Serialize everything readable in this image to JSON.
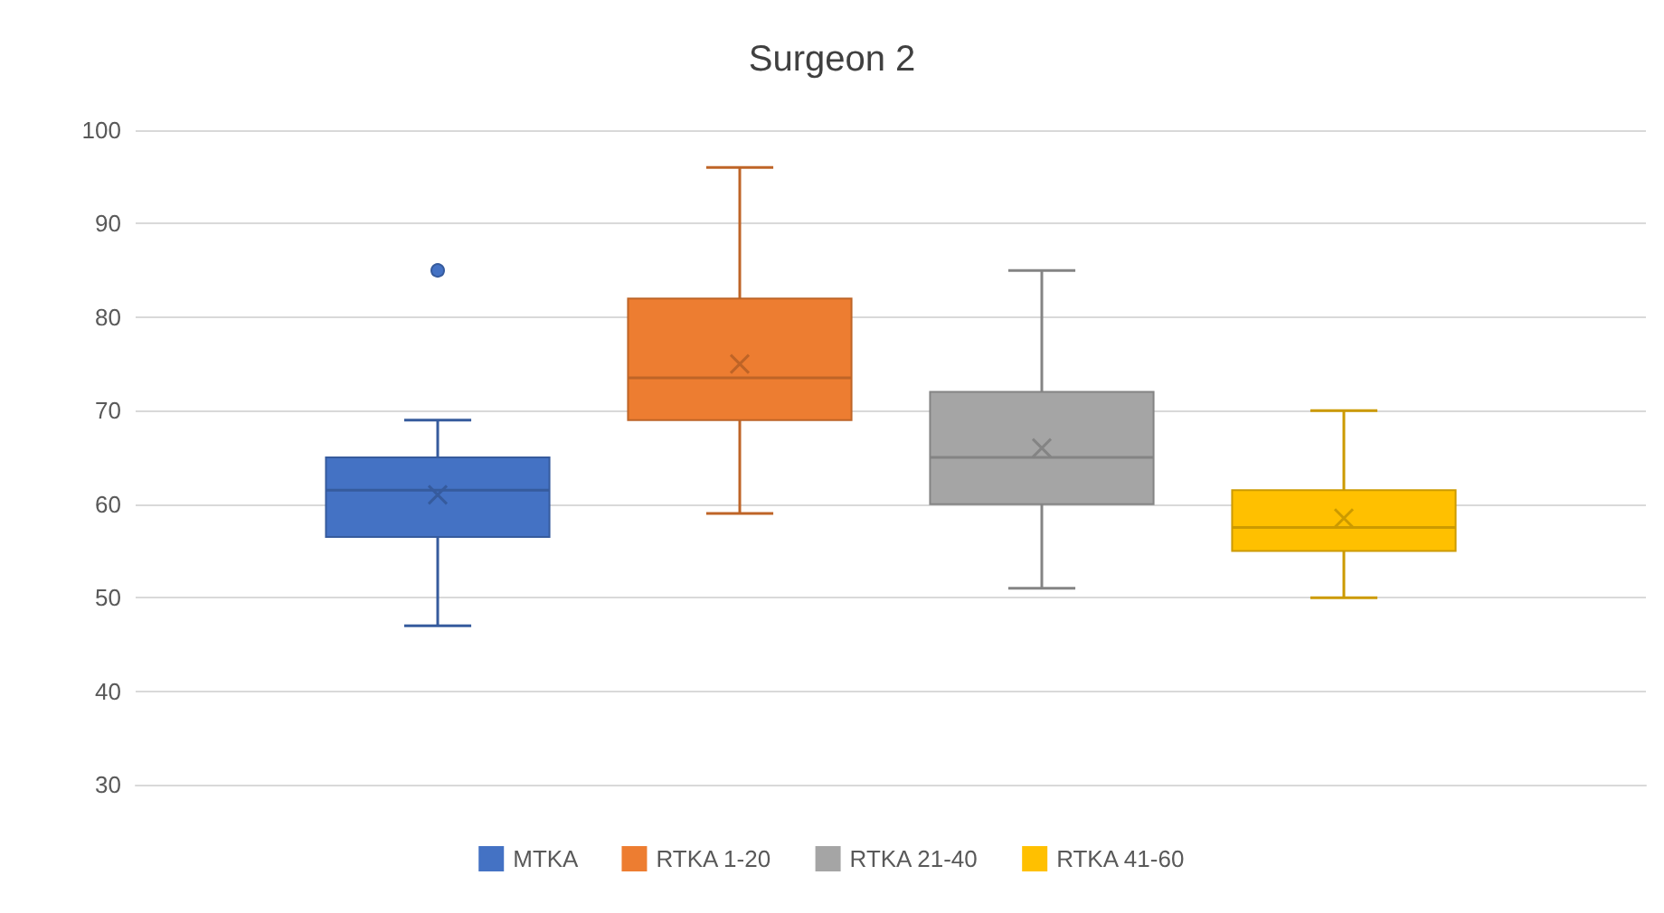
{
  "chart_data": {
    "type": "box",
    "title": "Surgeon 2",
    "categories": [
      null
    ],
    "series": [
      {
        "name": "MTKA",
        "color": "#4472c4",
        "boxes": [
          {
            "low": 47,
            "q1": 56.5,
            "median": 61.5,
            "q3": 65,
            "high": 69,
            "mean": 61,
            "outliers": [
              85
            ]
          }
        ]
      },
      {
        "name": "RTKA 1-20",
        "color": "#ed7d31",
        "boxes": [
          {
            "low": 59,
            "q1": 69,
            "median": 73.5,
            "q3": 82,
            "high": 96,
            "mean": 75
          }
        ]
      },
      {
        "name": "RTKA 21-40",
        "color": "#a5a5a5",
        "boxes": [
          {
            "low": 51,
            "q1": 60,
            "median": 65,
            "q3": 72,
            "high": 85,
            "mean": 66
          }
        ]
      },
      {
        "name": "RTKA 41-60",
        "color": "#ffc000",
        "boxes": [
          {
            "low": 50,
            "q1": 55,
            "median": 57.5,
            "q3": 61.5,
            "high": 70,
            "mean": 58.5
          }
        ]
      }
    ],
    "ylim": [
      30,
      100
    ],
    "yticks": [
      30,
      40,
      50,
      60,
      70,
      80,
      90,
      100
    ],
    "grid": "y",
    "legend": "bottom"
  }
}
